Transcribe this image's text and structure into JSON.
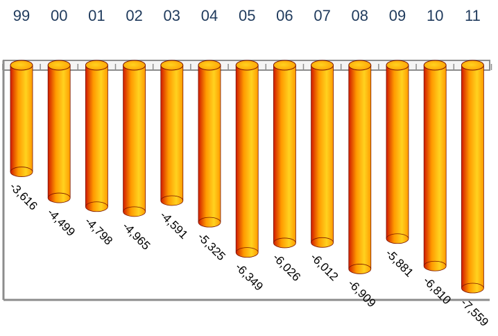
{
  "chart_data": {
    "type": "bar",
    "title": "",
    "xlabel": "",
    "ylabel": "",
    "categories": [
      "99",
      "00",
      "01",
      "02",
      "03",
      "04",
      "05",
      "06",
      "07",
      "08",
      "09",
      "10",
      "11"
    ],
    "values": [
      -3616,
      -4499,
      -4798,
      -4965,
      -4591,
      -5325,
      -6349,
      -6026,
      -6012,
      -6909,
      -5881,
      -6810,
      -7559
    ],
    "value_labels": [
      "-3,616",
      "-4,499",
      "-4,798",
      "-4,965",
      "-4,591",
      "-5,325",
      "-6,349",
      "-6,026",
      "-6,012",
      "-6,909",
      "-5,881",
      "-6,810",
      "-7,559"
    ],
    "ylim": [
      -9000,
      0
    ],
    "category_axis_position": "top",
    "bar_style": "3d-cylinder",
    "grid": false,
    "legend": "none",
    "colors": {
      "bar_light": "#ffd21f",
      "bar_mid": "#ff9a00",
      "bar_dark": "#cf1a00",
      "bar_edge": "#7a1500",
      "axis": "#8c8c8c",
      "category_text": "#1f3a5c",
      "value_text": "#000000"
    }
  }
}
